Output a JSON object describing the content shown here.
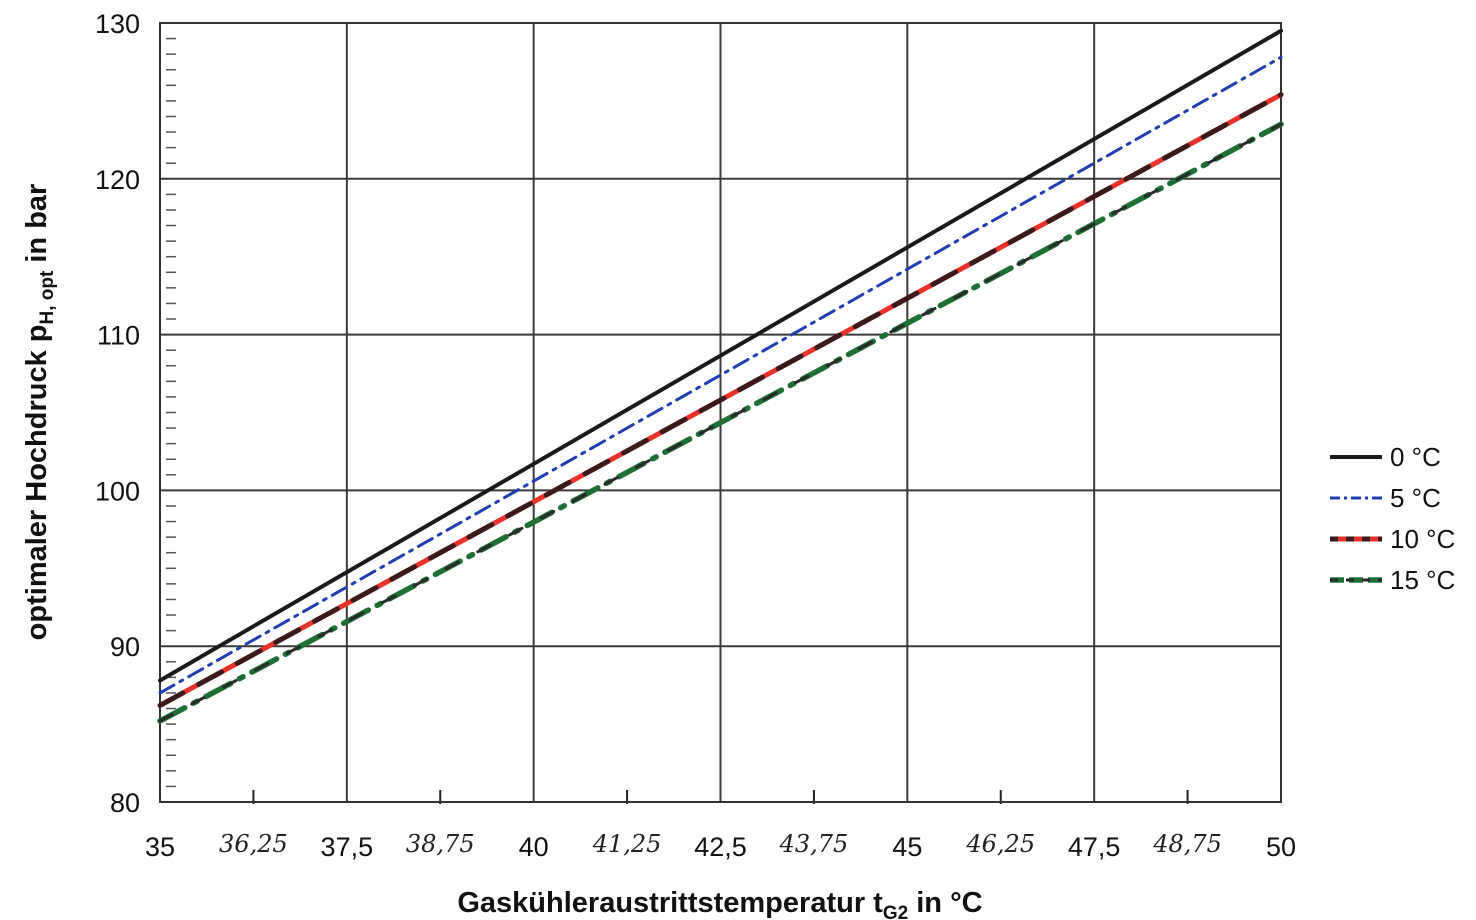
{
  "chart_data": {
    "type": "line",
    "xlabel": "Gaskühleraustrittstemperatur t",
    "xlabel_sub": "G2",
    "xlabel_unit": " in °C",
    "ylabel": "optimaler Hochdruck p",
    "ylabel_sub": "H, opt",
    "ylabel_unit": " in bar",
    "xlim": [
      35,
      50
    ],
    "ylim": [
      80,
      130
    ],
    "x_ticks": [
      {
        "value": 35,
        "label": "35"
      },
      {
        "value": 37.5,
        "label": "37,5"
      },
      {
        "value": 40,
        "label": "40"
      },
      {
        "value": 42.5,
        "label": "42,5"
      },
      {
        "value": 45,
        "label": "45"
      },
      {
        "value": 47.5,
        "label": "47,5"
      },
      {
        "value": 50,
        "label": "50"
      }
    ],
    "x_handwritten_ticks": [
      {
        "value": 36.25,
        "label": "36,25"
      },
      {
        "value": 38.75,
        "label": "38,75"
      },
      {
        "value": 41.25,
        "label": "41,25"
      },
      {
        "value": 43.75,
        "label": "43,75"
      },
      {
        "value": 46.25,
        "label": "46,25"
      },
      {
        "value": 48.75,
        "label": "48,75"
      }
    ],
    "y_ticks": [
      {
        "value": 80,
        "label": "80"
      },
      {
        "value": 90,
        "label": "90"
      },
      {
        "value": 100,
        "label": "100"
      },
      {
        "value": 110,
        "label": "110"
      },
      {
        "value": 120,
        "label": "120"
      },
      {
        "value": 130,
        "label": "130"
      }
    ],
    "grid": true,
    "legend_position": "right",
    "series": [
      {
        "name": "0 °C",
        "color": "#1a1a1a",
        "x": [
          35,
          50
        ],
        "y": [
          87.8,
          129.5
        ]
      },
      {
        "name": "5 °C",
        "color": "#1f3fb0",
        "x": [
          35,
          50
        ],
        "y": [
          87.0,
          127.8
        ]
      },
      {
        "name": "10 °C",
        "color": "#e8322a",
        "x": [
          35,
          50
        ],
        "y": [
          86.2,
          125.4
        ]
      },
      {
        "name": "15 °C",
        "color": "#1d7a35",
        "x": [
          35,
          50
        ],
        "y": [
          85.2,
          123.5
        ]
      }
    ]
  }
}
